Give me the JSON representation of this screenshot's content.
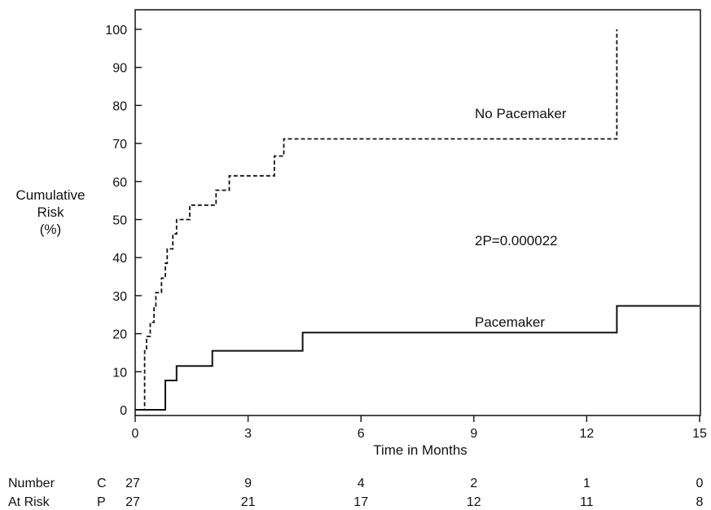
{
  "chart_data": {
    "type": "line",
    "subtype": "step",
    "title": "",
    "xlabel": "Time in Months",
    "ylabel": [
      "Cumulative",
      "Risk",
      "(%)"
    ],
    "xlim": [
      0,
      15
    ],
    "ylim": [
      0,
      100
    ],
    "xticks": [
      0,
      3,
      6,
      9,
      12,
      15
    ],
    "yticks": [
      0,
      10,
      20,
      30,
      40,
      50,
      60,
      70,
      80,
      90,
      100
    ],
    "grid": false,
    "series": [
      {
        "name": "No Pacemaker",
        "line_style": "dashed",
        "color": "#111111",
        "points": [
          [
            0,
            0
          ],
          [
            0.25,
            0
          ],
          [
            0.25,
            15.5
          ],
          [
            0.3,
            15.5
          ],
          [
            0.3,
            19.3
          ],
          [
            0.4,
            19.3
          ],
          [
            0.4,
            23
          ],
          [
            0.5,
            23
          ],
          [
            0.5,
            27
          ],
          [
            0.55,
            27
          ],
          [
            0.55,
            30.8
          ],
          [
            0.7,
            30.8
          ],
          [
            0.7,
            34.6
          ],
          [
            0.8,
            34.6
          ],
          [
            0.8,
            38.5
          ],
          [
            0.85,
            38.5
          ],
          [
            0.85,
            42.3
          ],
          [
            1.0,
            42.3
          ],
          [
            1.0,
            46.2
          ],
          [
            1.1,
            46.2
          ],
          [
            1.1,
            50
          ],
          [
            1.45,
            50
          ],
          [
            1.45,
            53.8
          ],
          [
            2.15,
            53.8
          ],
          [
            2.15,
            57.7
          ],
          [
            2.5,
            57.7
          ],
          [
            2.5,
            61.5
          ],
          [
            3.7,
            61.5
          ],
          [
            3.7,
            66.7
          ],
          [
            3.95,
            66.7
          ],
          [
            3.95,
            71.2
          ],
          [
            12.8,
            71.2
          ],
          [
            12.8,
            100
          ]
        ]
      },
      {
        "name": "Pacemaker",
        "line_style": "solid",
        "color": "#111111",
        "points": [
          [
            0,
            0
          ],
          [
            0.8,
            0
          ],
          [
            0.8,
            7.7
          ],
          [
            1.1,
            7.7
          ],
          [
            1.1,
            11.5
          ],
          [
            2.05,
            11.5
          ],
          [
            2.05,
            15.5
          ],
          [
            4.45,
            15.5
          ],
          [
            4.45,
            20.3
          ],
          [
            12.8,
            20.3
          ],
          [
            12.8,
            27.3
          ],
          [
            15,
            27.3
          ]
        ]
      }
    ],
    "annotations": [
      "No Pacemaker",
      "2P=0.000022",
      "Pacemaker"
    ]
  },
  "at_risk": {
    "label_line1": "Number",
    "label_line2": "At Risk",
    "rows": [
      {
        "group": "C",
        "counts": [
          "27",
          "9",
          "4",
          "2",
          "1",
          "0"
        ]
      },
      {
        "group": "P",
        "counts": [
          "27",
          "21",
          "17",
          "12",
          "11",
          "8"
        ]
      }
    ]
  }
}
